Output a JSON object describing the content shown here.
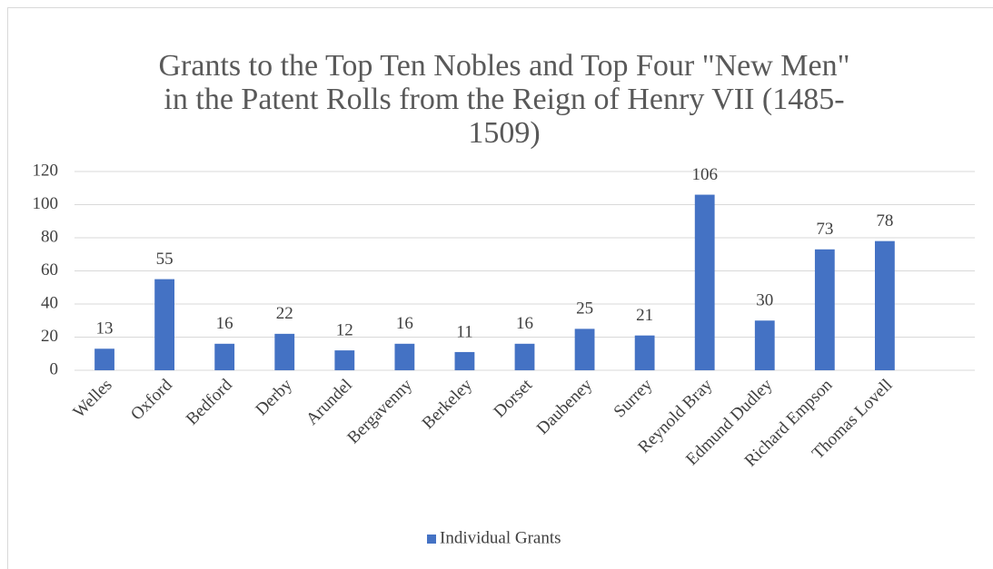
{
  "chart_data": {
    "type": "bar",
    "title": [
      "Grants to the Top Ten Nobles  and Top Four \"New Men\"",
      "in the Patent Rolls from the Reign of Henry VII (1485-",
      "1509)"
    ],
    "categories": [
      "Welles",
      "Oxford",
      "Bedford",
      "Derby",
      "Arundel",
      "Bergavenny",
      "Berkeley",
      "Dorset",
      "Daubeney",
      "Surrey",
      "Reynold Bray",
      "Edmund Dudley",
      "Richard Empson",
      "Thomas Lovell",
      null
    ],
    "series": [
      {
        "name": "Individual Grants",
        "color": "#4472c4",
        "values": [
          13,
          55,
          16,
          22,
          12,
          16,
          11,
          16,
          25,
          21,
          106,
          30,
          73,
          78,
          null
        ]
      }
    ],
    "ylim": [
      0,
      120
    ],
    "yticks": [
      0,
      20,
      40,
      60,
      80,
      100,
      120
    ],
    "grid": true,
    "legend": "bottom",
    "data_labels": true
  }
}
